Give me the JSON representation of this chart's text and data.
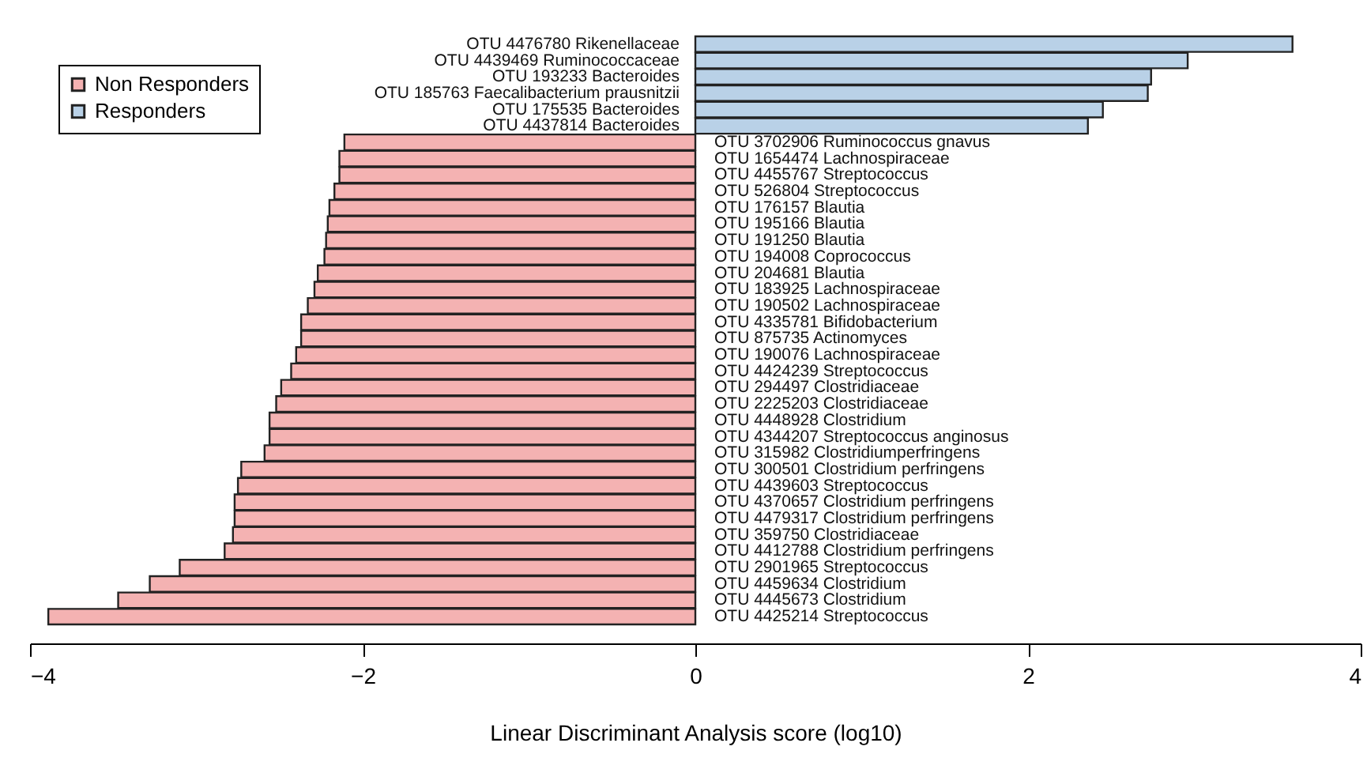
{
  "chart_data": {
    "type": "bar",
    "orientation": "horizontal",
    "xlabel": "Linear Discriminant Analysis score (log10)",
    "categories": [
      "OTU 4476780 Rikenellaceae",
      "OTU 4439469 Ruminococcaceae",
      "OTU 193233 Bacteroides",
      "OTU 185763 Faecalibacterium prausnitzii",
      "OTU 175535 Bacteroides",
      "OTU 4437814 Bacteroides",
      "OTU 3702906 Ruminococcus gnavus",
      "OTU 1654474 Lachnospiraceae",
      "OTU 4455767 Streptococcus",
      "OTU 526804 Streptococcus",
      "OTU 176157 Blautia",
      "OTU 195166 Blautia",
      "OTU 191250 Blautia",
      "OTU 194008 Coprococcus",
      "OTU 204681 Blautia",
      "OTU 183925 Lachnospiraceae",
      "OTU 190502 Lachnospiraceae",
      "OTU 4335781 Bifidobacterium",
      "OTU 875735 Actinomyces",
      "OTU 190076 Lachnospiraceae",
      "OTU 4424239 Streptococcus",
      "OTU 294497 Clostridiaceae",
      "OTU 2225203 Clostridiaceae",
      "OTU 4448928 Clostridium",
      "OTU 4344207 Streptococcus anginosus",
      "OTU 315982 Clostridiumperfringens",
      "OTU 300501 Clostridium perfringens",
      "OTU 4439603 Streptococcus",
      "OTU 4370657 Clostridium perfringens",
      "OTU 4479317 Clostridium perfringens",
      "OTU 359750 Clostridiaceae",
      "OTU 4412788 Clostridium perfringens",
      "OTU 2901965 Streptococcus",
      "OTU 4459634 Clostridium",
      "OTU 4445673 Clostridium",
      "OTU 4425214 Streptococcus"
    ],
    "series": [
      {
        "name": "Non Responders",
        "color": "#f4b2b2",
        "values": [
          null,
          null,
          null,
          null,
          null,
          null,
          -2.11,
          -2.14,
          -2.14,
          -2.17,
          -2.2,
          -2.21,
          -2.22,
          -2.23,
          -2.27,
          -2.29,
          -2.33,
          -2.37,
          -2.37,
          -2.4,
          -2.43,
          -2.49,
          -2.52,
          -2.56,
          -2.56,
          -2.59,
          -2.73,
          -2.75,
          -2.77,
          -2.77,
          -2.78,
          -2.83,
          -3.1,
          -3.28,
          -3.47,
          -3.89
        ]
      },
      {
        "name": "Responders",
        "color": "#b9d1e7",
        "values": [
          3.59,
          2.96,
          2.74,
          2.72,
          2.45,
          2.36,
          null,
          null,
          null,
          null,
          null,
          null,
          null,
          null,
          null,
          null,
          null,
          null,
          null,
          null,
          null,
          null,
          null,
          null,
          null,
          null,
          null,
          null,
          null,
          null,
          null,
          null,
          null,
          null,
          null,
          null
        ]
      }
    ],
    "xlim": [
      -4,
      4
    ],
    "xticks": [
      -4,
      -2,
      0,
      2,
      4
    ],
    "legend": "top left",
    "grid": false
  }
}
